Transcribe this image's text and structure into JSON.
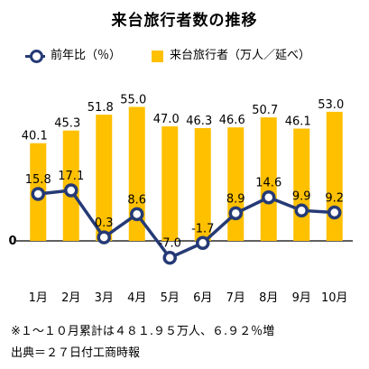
{
  "chart_data": {
    "type": "bar",
    "title": "来台旅行者数の推移",
    "categories": [
      "1月",
      "2月",
      "3月",
      "4月",
      "5月",
      "6月",
      "7月",
      "8月",
      "9月",
      "10月"
    ],
    "series": [
      {
        "name": "来台旅行者（万人／延べ）",
        "type": "bar",
        "color": "#ffc000",
        "values": [
          40.1,
          45.3,
          51.8,
          55.0,
          47.0,
          46.3,
          46.6,
          50.7,
          46.1,
          53.0
        ],
        "labels": [
          "40.1",
          "45.3",
          "51.8",
          "55.0",
          "47.0",
          "46.3",
          "46.6",
          "50.7",
          "46.1",
          "53.0"
        ]
      },
      {
        "name": "前年比（％）",
        "type": "line",
        "color": "#253a75",
        "values": [
          15.8,
          17.1,
          0.3,
          8.6,
          -7.0,
          -1.7,
          8.9,
          14.6,
          9.9,
          9.2
        ],
        "labels": [
          "15.8",
          "17.1",
          "0.3",
          "8.6",
          "-7.0",
          "-1.7",
          "8.9",
          "14.6",
          "9.9",
          "9.2"
        ]
      }
    ],
    "zero_label": "0",
    "legend_position": "top",
    "grid": false
  },
  "notes": [
    "※１～１０月累計は４８１.９５万人、６.９２％増",
    "出典＝２７日付工商時報"
  ]
}
